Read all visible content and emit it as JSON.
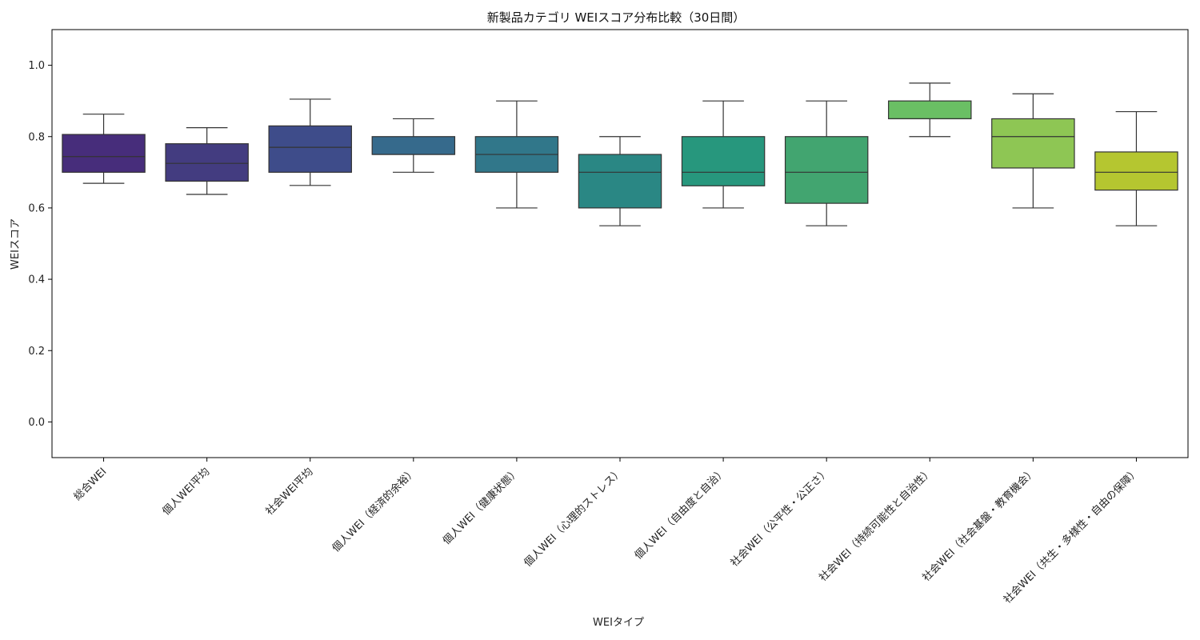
{
  "chart_data": {
    "type": "box",
    "title": "新製品カテゴリ WEIスコア分布比較（30日間）",
    "xlabel": "WEIタイプ",
    "ylabel": "WEIスコア",
    "ylim": [
      -0.1,
      1.1
    ],
    "yticks": [
      "0.0",
      "0.2",
      "0.4",
      "0.6",
      "0.8",
      "1.0"
    ],
    "grid": false,
    "legend": "none",
    "categories": [
      "総合WEI",
      "個人WEI平均",
      "社会WEI平均",
      "個人WEI（経済的余裕）",
      "個人WEI（健康状態）",
      "個人WEI（心理的ストレス）",
      "個人WEI（自由度と自治）",
      "社会WEI（公平性・公正さ）",
      "社会WEI（持続可能性と自治性）",
      "社会WEI（社会基盤・教育機会）",
      "社会WEI（共生・多様性・自由の保障）"
    ],
    "boxes": [
      {
        "whisker_low": 0.669,
        "q1": 0.7,
        "median": 0.744,
        "q3": 0.806,
        "whisker_high": 0.863,
        "color": "#472d7b"
      },
      {
        "whisker_low": 0.638,
        "q1": 0.675,
        "median": 0.725,
        "q3": 0.78,
        "whisker_high": 0.825,
        "color": "#433c80"
      },
      {
        "whisker_low": 0.663,
        "q1": 0.7,
        "median": 0.77,
        "q3": 0.83,
        "whisker_high": 0.905,
        "color": "#3e4c8a"
      },
      {
        "whisker_low": 0.7,
        "q1": 0.75,
        "median": 0.75,
        "q3": 0.8,
        "whisker_high": 0.85,
        "color": "#366a8c"
      },
      {
        "whisker_low": 0.6,
        "q1": 0.7,
        "median": 0.75,
        "q3": 0.8,
        "whisker_high": 0.9,
        "color": "#31778a"
      },
      {
        "whisker_low": 0.55,
        "q1": 0.6,
        "median": 0.7,
        "q3": 0.75,
        "whisker_high": 0.8,
        "color": "#2a8784"
      },
      {
        "whisker_low": 0.6,
        "q1": 0.662,
        "median": 0.7,
        "q3": 0.8,
        "whisker_high": 0.9,
        "color": "#27977d"
      },
      {
        "whisker_low": 0.55,
        "q1": 0.613,
        "median": 0.7,
        "q3": 0.8,
        "whisker_high": 0.9,
        "color": "#42a570"
      },
      {
        "whisker_low": 0.8,
        "q1": 0.85,
        "median": 0.85,
        "q3": 0.9,
        "whisker_high": 0.95,
        "color": "#6abf64"
      },
      {
        "whisker_low": 0.6,
        "q1": 0.712,
        "median": 0.8,
        "q3": 0.85,
        "whisker_high": 0.92,
        "color": "#8ec654"
      },
      {
        "whisker_low": 0.55,
        "q1": 0.65,
        "median": 0.7,
        "q3": 0.757,
        "whisker_high": 0.87,
        "color": "#b5c630"
      }
    ]
  }
}
